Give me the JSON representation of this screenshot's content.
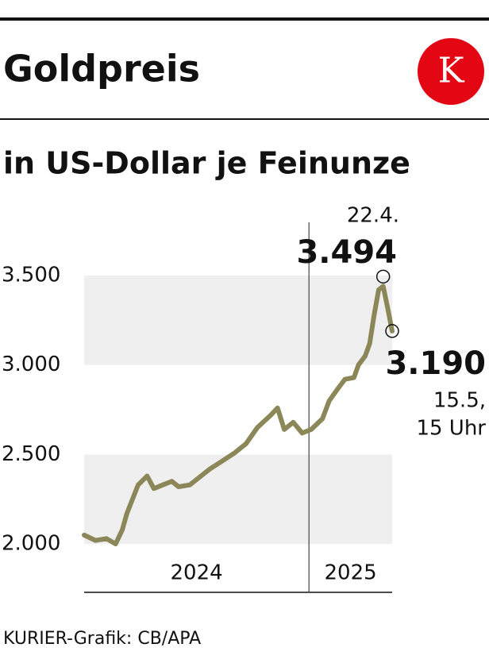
{
  "chart_data": {
    "type": "line",
    "title": "Goldpreis",
    "subtitle": "in US-Dollar je Feinunze",
    "logo": "K",
    "source": "KURIER-Grafik: CB/APA",
    "x": [
      2024.0,
      2024.05,
      2024.1,
      2024.14,
      2024.17,
      2024.19,
      2024.24,
      2024.28,
      2024.31,
      2024.35,
      2024.39,
      2024.42,
      2024.47,
      2024.53,
      2024.56,
      2024.61,
      2024.67,
      2024.72,
      2024.77,
      2024.83,
      2024.86,
      2024.89,
      2024.93,
      2024.97,
      2025.01,
      2025.06,
      2025.09,
      2025.13,
      2025.16,
      2025.2,
      2025.22,
      2025.25,
      2025.27,
      2025.29,
      2025.31,
      2025.33,
      2025.35,
      2025.37
    ],
    "values": [
      2050,
      2020,
      2030,
      2000,
      2080,
      2170,
      2330,
      2380,
      2310,
      2330,
      2350,
      2320,
      2330,
      2390,
      2420,
      2460,
      2510,
      2560,
      2650,
      2720,
      2760,
      2640,
      2680,
      2620,
      2640,
      2700,
      2800,
      2870,
      2920,
      2930,
      3000,
      3050,
      3120,
      3280,
      3420,
      3440,
      3320,
      3190
    ],
    "color": "#8c8758",
    "xlim": [
      2024.0,
      2025.37
    ],
    "ylim": [
      1730,
      3500
    ],
    "yticks": [
      {
        "value": 2000,
        "label": "2.000"
      },
      {
        "value": 2500,
        "label": "2.500"
      },
      {
        "value": 3000,
        "label": "3.000"
      },
      {
        "value": 3500,
        "label": "3.500"
      }
    ],
    "period_labels": [
      2024,
      2025
    ],
    "annotations": [
      {
        "x": 2025.33,
        "value": 3494,
        "value_label": "3.494",
        "date_label": [
          "22.4."
        ]
      },
      {
        "x": 2025.37,
        "value": 3190,
        "value_label": "3.190",
        "date_label": [
          "15.5,",
          "15 Uhr"
        ]
      }
    ]
  }
}
